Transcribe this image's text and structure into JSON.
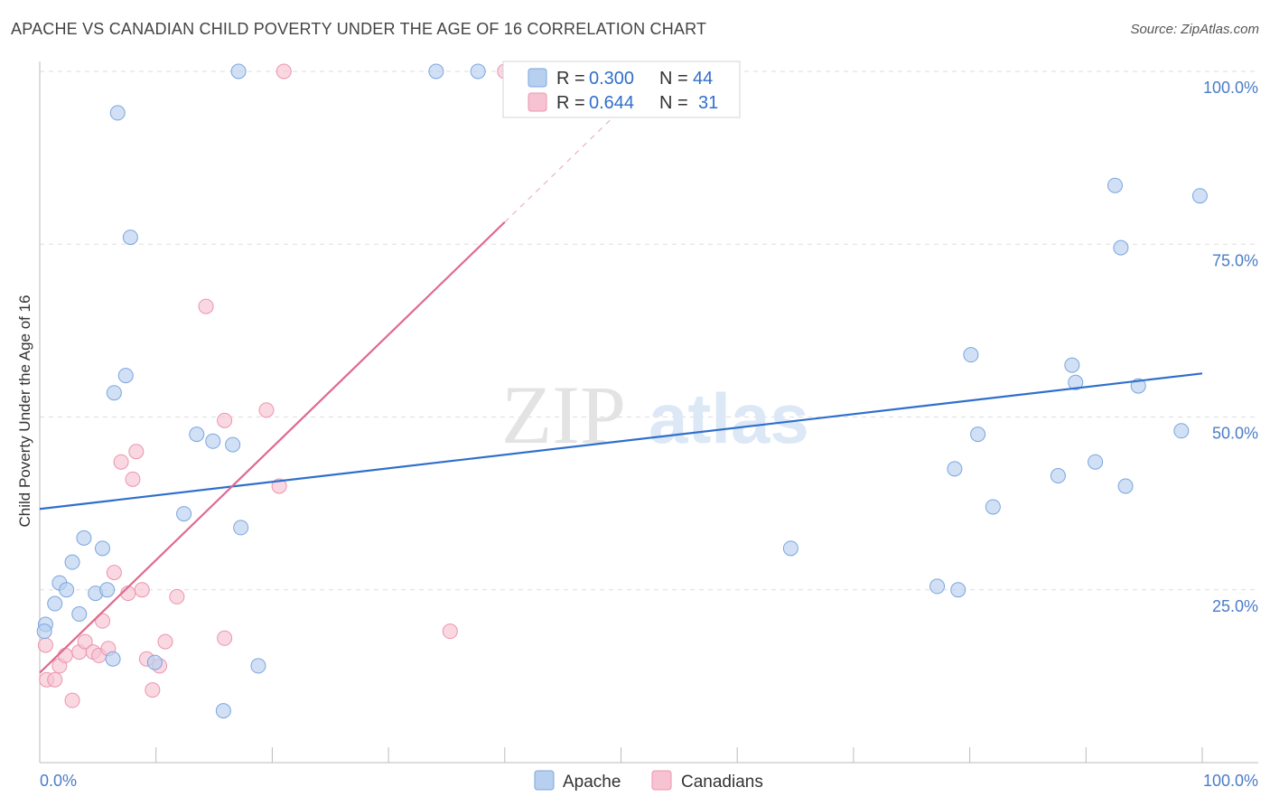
{
  "title": "APACHE VS CANADIAN CHILD POVERTY UNDER THE AGE OF 16 CORRELATION CHART",
  "source": "Source: ZipAtlas.com",
  "watermark": {
    "zip": "ZIP",
    "atlas": "atlas"
  },
  "colors": {
    "apache_fill": "#b8d0f0",
    "apache_stroke": "#7aa6de",
    "apache_line": "#2f6fcc",
    "canadian_fill": "#f7c3d2",
    "canadian_stroke": "#eb94ae",
    "canadian_line": "#e0698f",
    "value_blue": "#2f6fcc",
    "grid": "#dddddd"
  },
  "legend": {
    "r_label": "R =",
    "n_label": "N =",
    "apache": {
      "r": "0.300",
      "n": "44"
    },
    "canadians": {
      "r": "0.644",
      "n": "31"
    }
  },
  "chart_data": {
    "type": "scatter",
    "title": "APACHE VS CANADIAN CHILD POVERTY UNDER THE AGE OF 16 CORRELATION CHART",
    "xlabel": "",
    "ylabel": "Child Poverty Under the Age of 16",
    "xlim": [
      0,
      100
    ],
    "ylim": [
      0,
      100
    ],
    "x_tick_labels": [
      {
        "value": 0,
        "label": "0.0%"
      },
      {
        "value": 100,
        "label": "100.0%"
      }
    ],
    "y_tick_labels": [
      {
        "value": 25,
        "label": "25.0%"
      },
      {
        "value": 50,
        "label": "50.0%"
      },
      {
        "value": 75,
        "label": "75.0%"
      },
      {
        "value": 100,
        "label": "100.0%"
      }
    ],
    "series": [
      {
        "name": "Apache",
        "points": [
          [
            0.5,
            20
          ],
          [
            0.4,
            19
          ],
          [
            1.3,
            23
          ],
          [
            1.7,
            26
          ],
          [
            2.3,
            25
          ],
          [
            2.8,
            29
          ],
          [
            3.4,
            21.5
          ],
          [
            3.8,
            32.5
          ],
          [
            4.8,
            24.5
          ],
          [
            5.4,
            31
          ],
          [
            5.8,
            25
          ],
          [
            6.3,
            15
          ],
          [
            6.4,
            53.5
          ],
          [
            6.7,
            94
          ],
          [
            7.4,
            56
          ],
          [
            7.8,
            76
          ],
          [
            9.9,
            14.5
          ],
          [
            12.4,
            36
          ],
          [
            13.5,
            47.5
          ],
          [
            14.9,
            46.5
          ],
          [
            15.8,
            7.5
          ],
          [
            16.6,
            46
          ],
          [
            17.1,
            100
          ],
          [
            17.3,
            34
          ],
          [
            18.8,
            14
          ],
          [
            34.1,
            100
          ],
          [
            37.7,
            100
          ],
          [
            64.6,
            31
          ],
          [
            77.2,
            25.5
          ],
          [
            79.0,
            25
          ],
          [
            78.7,
            42.5
          ],
          [
            80.1,
            59
          ],
          [
            80.7,
            47.5
          ],
          [
            82.0,
            37
          ],
          [
            87.6,
            41.5
          ],
          [
            88.8,
            57.5
          ],
          [
            89.1,
            55
          ],
          [
            90.8,
            43.5
          ],
          [
            92.5,
            83.5
          ],
          [
            93.0,
            74.5
          ],
          [
            93.4,
            40
          ],
          [
            94.5,
            54.5
          ],
          [
            98.2,
            48
          ],
          [
            99.8,
            82
          ]
        ],
        "trend": {
          "x0": 0,
          "y0": 36.7,
          "x1": 100,
          "y1": 56.3
        }
      },
      {
        "name": "Canadians",
        "points": [
          [
            0.5,
            17
          ],
          [
            0.6,
            12
          ],
          [
            1.3,
            12
          ],
          [
            1.7,
            14
          ],
          [
            2.2,
            15.5
          ],
          [
            2.8,
            9
          ],
          [
            3.4,
            16
          ],
          [
            3.9,
            17.5
          ],
          [
            4.6,
            16
          ],
          [
            5.1,
            15.5
          ],
          [
            5.4,
            20.5
          ],
          [
            5.9,
            16.5
          ],
          [
            6.4,
            27.5
          ],
          [
            7.0,
            43.5
          ],
          [
            7.6,
            24.5
          ],
          [
            8.0,
            41
          ],
          [
            8.3,
            45
          ],
          [
            8.8,
            25
          ],
          [
            9.2,
            15
          ],
          [
            9.7,
            10.5
          ],
          [
            10.3,
            14
          ],
          [
            10.8,
            17.5
          ],
          [
            11.8,
            24
          ],
          [
            14.3,
            66
          ],
          [
            15.9,
            49.5
          ],
          [
            15.9,
            18
          ],
          [
            19.5,
            51
          ],
          [
            20.6,
            40
          ],
          [
            21.0,
            100
          ],
          [
            35.3,
            19
          ],
          [
            40.0,
            100
          ]
        ],
        "trend": {
          "x0": 0,
          "y0": 13.0,
          "x1": 40.0,
          "y1": 78.2,
          "dash_to_x": 50.5,
          "dash_to_y": 95.3
        }
      }
    ],
    "bottom_legend": [
      "Apache",
      "Canadians"
    ]
  }
}
